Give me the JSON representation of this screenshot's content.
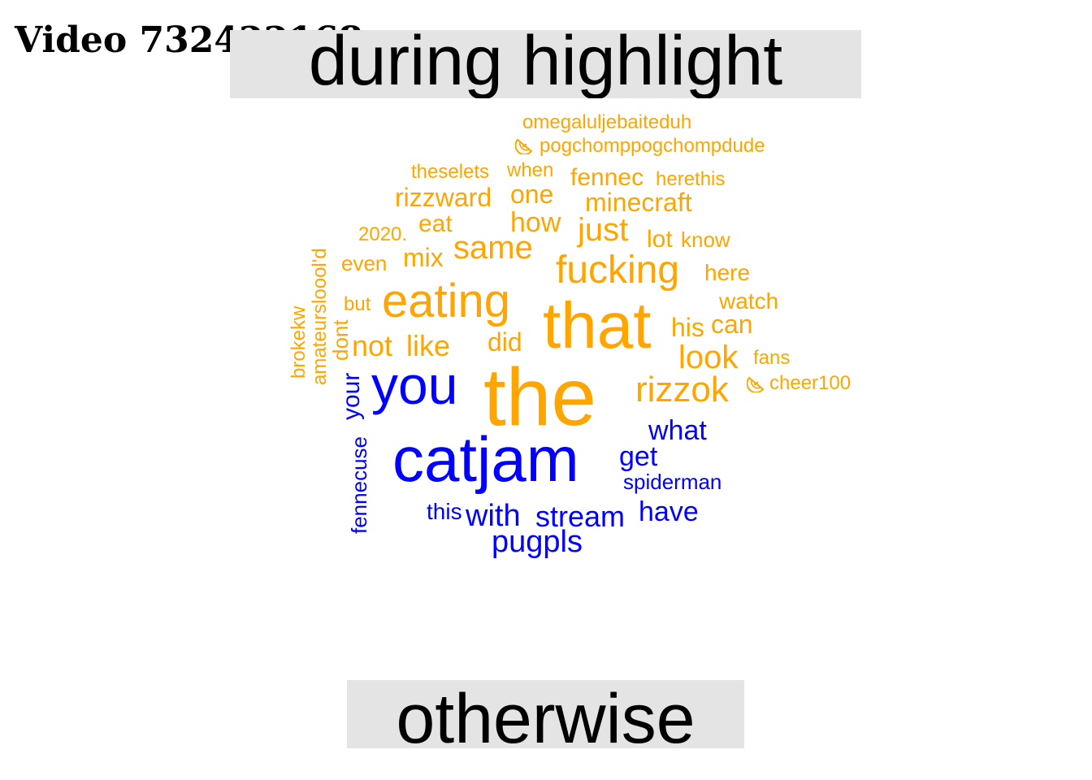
{
  "video_title": "Video 732422168",
  "labels": {
    "top": "during highlight",
    "bottom": "otherwise"
  },
  "colors": {
    "during": "#ffa500",
    "otherwise": "#0000ff",
    "label_bg": "#e4e4e4"
  },
  "words": [
    {
      "text": "the",
      "group": "during"
    },
    {
      "text": "that",
      "group": "during"
    },
    {
      "text": "eating",
      "group": "during"
    },
    {
      "text": "fucking",
      "group": "during"
    },
    {
      "text": "rizzok",
      "group": "during"
    },
    {
      "text": "same",
      "group": "during"
    },
    {
      "text": "look",
      "group": "during"
    },
    {
      "text": "just",
      "group": "during"
    },
    {
      "text": "not",
      "group": "during"
    },
    {
      "text": "like",
      "group": "during"
    },
    {
      "text": "how",
      "group": "during"
    },
    {
      "text": "rizzward",
      "group": "during"
    },
    {
      "text": "minecraft",
      "group": "during"
    },
    {
      "text": "one",
      "group": "during"
    },
    {
      "text": "his",
      "group": "during"
    },
    {
      "text": "can",
      "group": "during"
    },
    {
      "text": "did",
      "group": "during"
    },
    {
      "text": "mix",
      "group": "during"
    },
    {
      "text": "eat",
      "group": "during"
    },
    {
      "text": "fennec",
      "group": "during"
    },
    {
      "text": "lot",
      "group": "during"
    },
    {
      "text": "here",
      "group": "during"
    },
    {
      "text": "watch",
      "group": "during"
    },
    {
      "text": "even",
      "group": "during"
    },
    {
      "text": "know",
      "group": "during"
    },
    {
      "text": "herethis",
      "group": "during"
    },
    {
      "text": "theselets",
      "group": "during"
    },
    {
      "text": "when",
      "group": "during"
    },
    {
      "text": "omegaluljebaiteduh",
      "group": "during"
    },
    {
      "text": "pogchomppogchompdude",
      "group": "during"
    },
    {
      "text": "2020.",
      "group": "during"
    },
    {
      "text": "but",
      "group": "during"
    },
    {
      "text": "fans",
      "group": "during"
    },
    {
      "text": "cheer100",
      "group": "during"
    },
    {
      "text": "dont",
      "group": "during"
    },
    {
      "text": "amateursloool'd",
      "group": "during"
    },
    {
      "text": "brokekw",
      "group": "during"
    },
    {
      "text": "catjam",
      "group": "otherwise"
    },
    {
      "text": "you",
      "group": "otherwise"
    },
    {
      "text": "pugpls",
      "group": "otherwise"
    },
    {
      "text": "with",
      "group": "otherwise"
    },
    {
      "text": "stream",
      "group": "otherwise"
    },
    {
      "text": "have",
      "group": "otherwise"
    },
    {
      "text": "what",
      "group": "otherwise"
    },
    {
      "text": "get",
      "group": "otherwise"
    },
    {
      "text": "your",
      "group": "otherwise"
    },
    {
      "text": "this",
      "group": "otherwise"
    },
    {
      "text": "spiderman",
      "group": "otherwise"
    },
    {
      "text": "fennecuse",
      "group": "otherwise"
    }
  ],
  "icons": [
    "watermelon-emote-icon",
    "watermelon-emote-icon"
  ]
}
